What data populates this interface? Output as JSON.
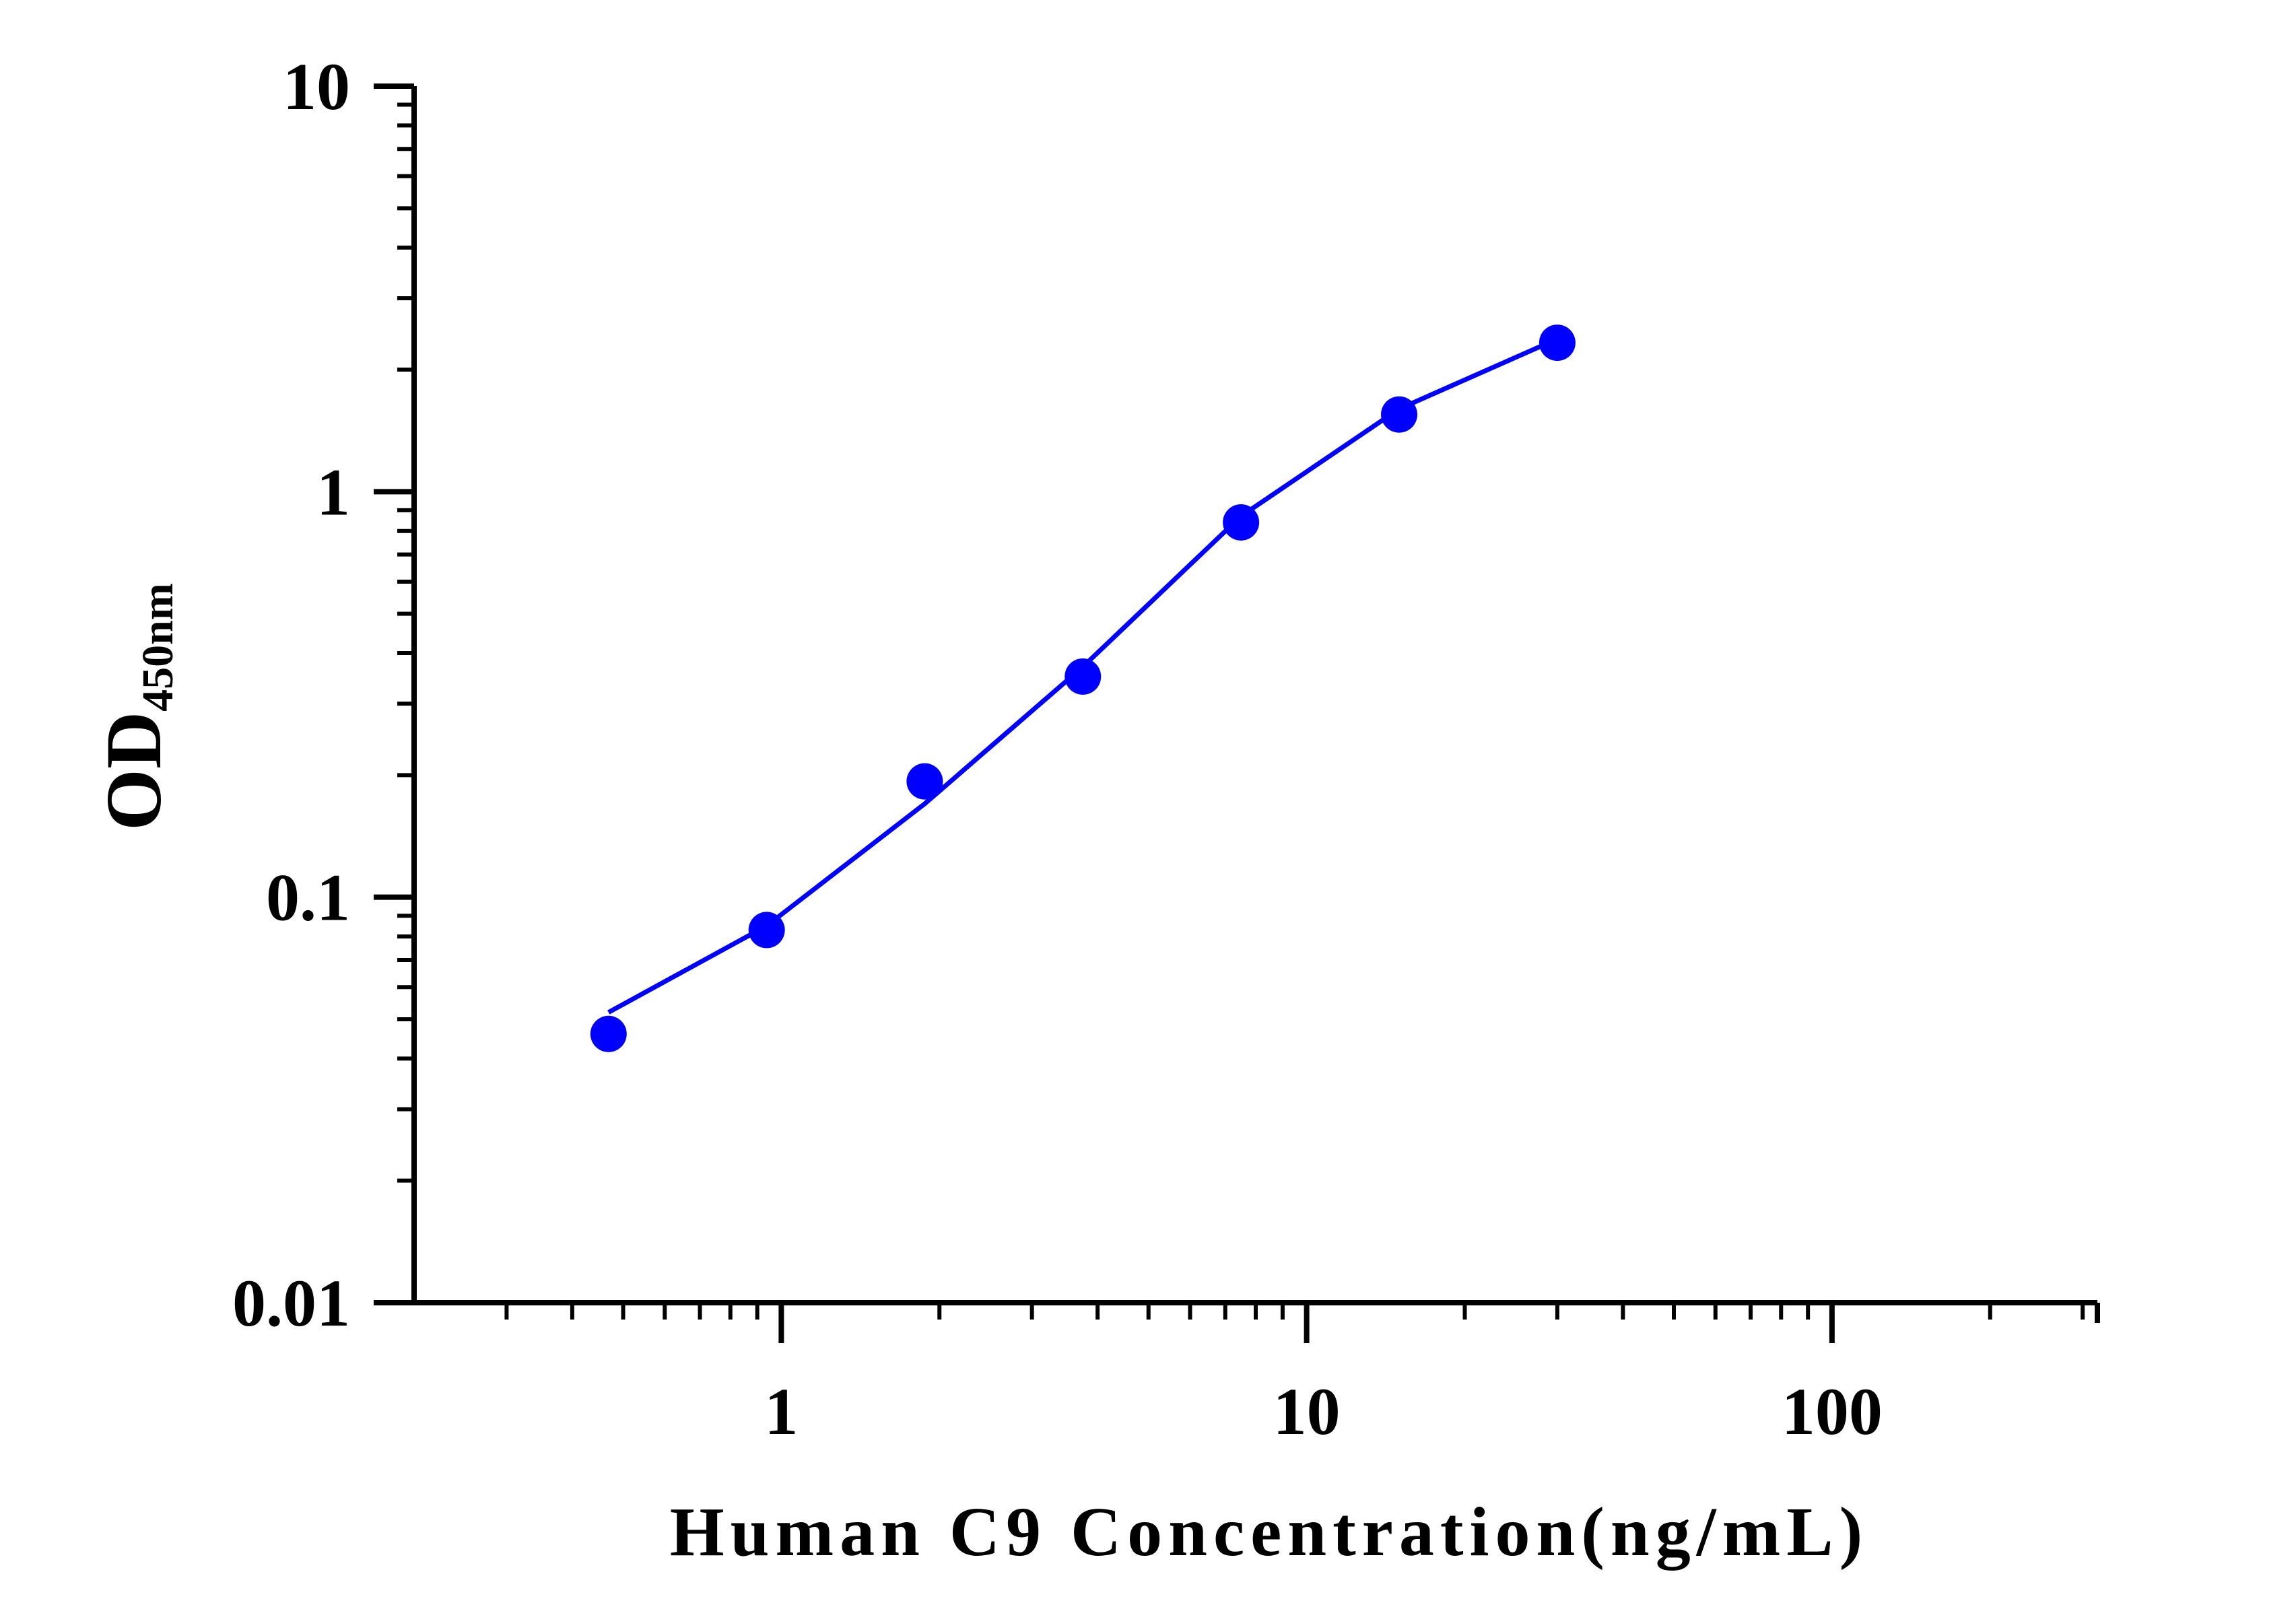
{
  "chart_data": {
    "type": "line",
    "xlabel": "Human C9 Concentration(ng/mL)",
    "ylabel": {
      "main": "OD",
      "subscript": "450nm"
    },
    "x_scale": "log",
    "y_scale": "log",
    "xlim": [
      0.2,
      320
    ],
    "ylim": [
      0.01,
      10
    ],
    "x_tick_labels": [
      "1",
      "10",
      "100"
    ],
    "y_tick_labels": [
      "0.01",
      "0.1",
      "1",
      "10"
    ],
    "x_major_ticks": [
      1,
      10,
      100
    ],
    "y_major_ticks": [
      0.01,
      0.1,
      1,
      10
    ],
    "grid": false,
    "legend": "none",
    "series": [
      {
        "color": "#0000ff",
        "x": [
          0.469,
          0.938,
          1.875,
          3.75,
          7.5,
          15,
          30
        ],
        "y": [
          0.046,
          0.083,
          0.193,
          0.35,
          0.84,
          1.55,
          2.33
        ],
        "fit_x": [
          0.469,
          0.938,
          1.875,
          3.75,
          7.5,
          15,
          30
        ],
        "fit_y": [
          0.052,
          0.085,
          0.17,
          0.37,
          0.87,
          1.6,
          2.38
        ]
      }
    ]
  }
}
